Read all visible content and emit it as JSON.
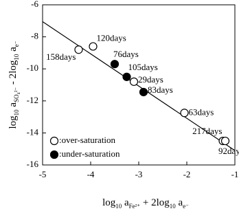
{
  "chart_data": {
    "type": "scatter",
    "xlabel": [
      {
        "text": "log"
      },
      {
        "text": "10",
        "sub": true
      },
      {
        "text": " a"
      },
      {
        "text": "Fe²⁺",
        "sub": true
      },
      {
        "text": " + 2log"
      },
      {
        "text": "10",
        "sub": true
      },
      {
        "text": " a"
      },
      {
        "text": "e⁻",
        "sub": true
      }
    ],
    "ylabel": [
      {
        "text": "log"
      },
      {
        "text": "10",
        "sub": true
      },
      {
        "text": " a"
      },
      {
        "text": "SO₄²⁻",
        "sub": true
      },
      {
        "text": " - 2log"
      },
      {
        "text": "10",
        "sub": true
      },
      {
        "text": " a"
      },
      {
        "text": "e⁻",
        "sub": true
      }
    ],
    "xlim": [
      -5,
      -1
    ],
    "xticks": [
      -5,
      -4,
      -3,
      -2,
      -1
    ],
    "ylim": [
      -16,
      -6
    ],
    "yticks": [
      -16,
      -14,
      -12,
      -10,
      -8,
      -6
    ],
    "fit_line": {
      "x": [
        -5,
        -1
      ],
      "y": [
        -7.05,
        -15.1
      ]
    },
    "series": [
      {
        "name": ":over-saturation",
        "color": "#ffffff",
        "x": [
          -4.25,
          -3.95,
          -3.1,
          -2.05,
          -1.25,
          -1.2
        ],
        "values": [
          -8.8,
          -8.6,
          -10.8,
          -12.75,
          -14.5,
          -14.5
        ],
        "labels": [
          "158days",
          "120days",
          "29days",
          "63days",
          "217days",
          "92days"
        ]
      },
      {
        "name": ":under-saturation",
        "color": "#000000",
        "x": [
          -3.5,
          -3.25,
          -2.9
        ],
        "values": [
          -9.7,
          -10.5,
          -11.45
        ],
        "labels": [
          "76days",
          "105days",
          "83days"
        ]
      }
    ]
  }
}
